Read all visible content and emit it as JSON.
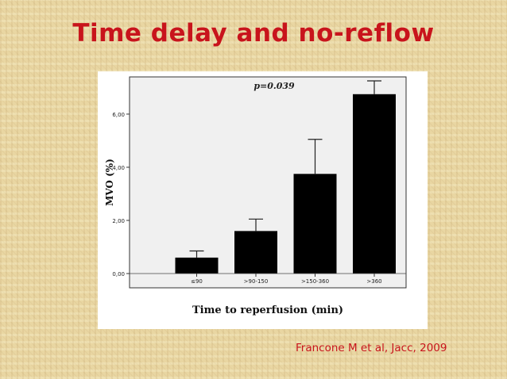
{
  "slide": {
    "title": "Time delay and no-reflow",
    "citation": "Francone M et al, Jacc, 2009"
  },
  "colors": {
    "title": "#c8141c",
    "bar": "#000000",
    "plot_background": "#f0f0f0"
  },
  "chart_data": {
    "type": "bar",
    "title": "",
    "annotation": "p=0.039",
    "xlabel": "Time to reperfusion (min)",
    "ylabel": "MVO (%)",
    "categories": [
      "≤90",
      ">90-150",
      ">150-360",
      ">360"
    ],
    "values": [
      0.6,
      1.6,
      3.75,
      6.75
    ],
    "error_upper": [
      0.85,
      2.05,
      5.05,
      7.25
    ],
    "ylim": [
      0,
      7.4
    ],
    "yticks": [
      0,
      2,
      4,
      6
    ],
    "ytick_labels": [
      "0,00",
      "2,00",
      "4,00",
      "6,00"
    ],
    "grid": false,
    "legend": "none"
  }
}
